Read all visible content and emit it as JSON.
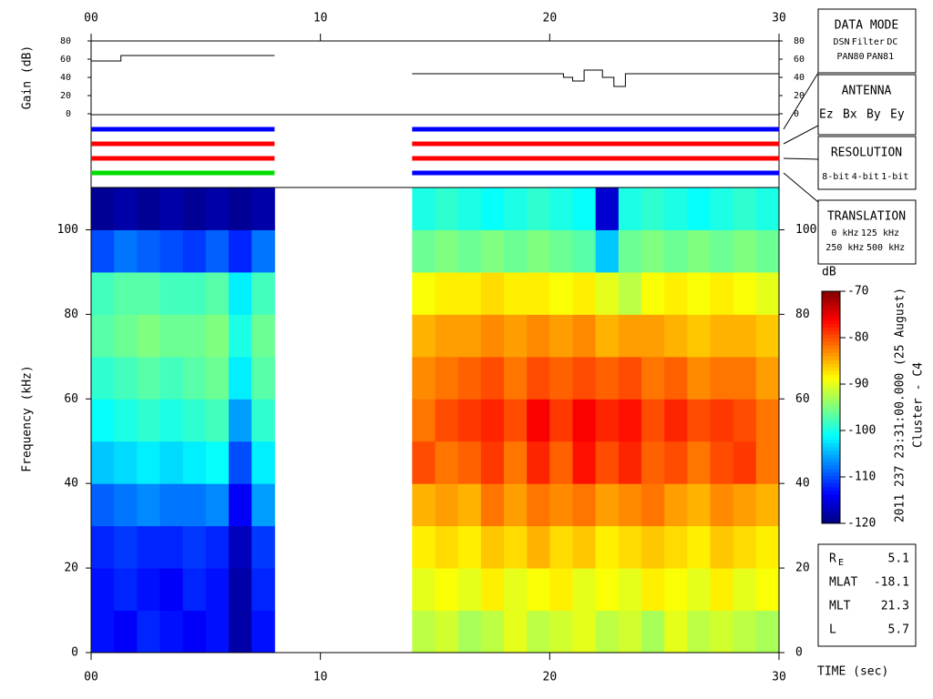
{
  "chart_data": [
    {
      "type": "line",
      "ylabel": "Gain (dB)",
      "color": "#000000",
      "x": [
        0,
        1.3,
        1.3,
        8,
        8,
        14,
        20.6,
        20.6,
        21.0,
        21.0,
        21.5,
        21.5,
        22.3,
        22.3,
        22.8,
        22.8,
        23.3,
        23.3,
        30
      ],
      "y": [
        58,
        58,
        64,
        64,
        null,
        44,
        44,
        40,
        40,
        36,
        36,
        48,
        48,
        40,
        40,
        30,
        30,
        44,
        44
      ],
      "xlim": [
        0,
        30
      ],
      "ylim": [
        0,
        80
      ],
      "yticks": [
        0,
        20,
        40,
        60,
        80
      ],
      "xticks": [
        {
          "value": 0,
          "label": "00"
        },
        10,
        20,
        30
      ]
    },
    {
      "type": "heatmap",
      "xlabel": "TIME (sec)",
      "ylabel": "Frequency (kHz)",
      "x_bins": [
        0,
        1,
        2,
        3,
        4,
        5,
        6,
        7,
        8,
        9,
        10,
        11,
        12,
        13,
        14,
        15,
        16,
        17,
        18,
        19,
        20,
        21,
        22,
        23,
        24,
        25,
        26,
        27,
        28,
        29,
        30
      ],
      "y_bins": [
        0,
        10,
        20,
        30,
        40,
        50,
        60,
        70,
        80,
        90,
        100,
        110
      ],
      "z": [
        [
          -113,
          -114,
          -112,
          -113,
          -114,
          -113,
          -118,
          -113,
          null,
          null,
          null,
          null,
          null,
          null,
          -92,
          -91,
          -93,
          -92,
          -90,
          -92,
          -91,
          -90,
          -92,
          -91,
          -93,
          -90,
          -92,
          -91,
          -92,
          -93
        ],
        [
          -113,
          -112,
          -113,
          -114,
          -112,
          -113,
          -118,
          -112,
          null,
          null,
          null,
          null,
          null,
          null,
          -90,
          -89,
          -90,
          -88,
          -90,
          -89,
          -88,
          -90,
          -89,
          -90,
          -88,
          -89,
          -90,
          -88,
          -90,
          -89
        ],
        [
          -112,
          -111,
          -112,
          -112,
          -111,
          -112,
          -117,
          -111,
          null,
          null,
          null,
          null,
          null,
          null,
          -88,
          -87,
          -88,
          -86,
          -87,
          -85,
          -87,
          -86,
          -88,
          -87,
          -86,
          -87,
          -88,
          -86,
          -87,
          -88
        ],
        [
          -109,
          -108,
          -107,
          -108,
          -108,
          -107,
          -114,
          -106,
          null,
          null,
          null,
          null,
          null,
          null,
          -85,
          -84,
          -85,
          -82,
          -84,
          -82,
          -83,
          -82,
          -84,
          -83,
          -82,
          -84,
          -85,
          -83,
          -84,
          -85
        ],
        [
          -104,
          -103,
          -102,
          -103,
          -102,
          -101,
          -110,
          -102,
          null,
          null,
          null,
          null,
          null,
          null,
          -80,
          -82,
          -81,
          -79,
          -82,
          -78,
          -81,
          -77,
          -80,
          -78,
          -81,
          -80,
          -82,
          -80,
          -79,
          -82
        ],
        [
          -101,
          -100,
          -99,
          -100,
          -99,
          -98,
          -106,
          -99,
          null,
          null,
          null,
          null,
          null,
          null,
          -82,
          -80,
          -79,
          -78,
          -80,
          -76,
          -79,
          -76,
          -78,
          -77,
          -80,
          -78,
          -80,
          -79,
          -80,
          -82
        ],
        [
          -99,
          -98,
          -97,
          -98,
          -97,
          -96,
          -102,
          -97,
          null,
          null,
          null,
          null,
          null,
          null,
          -83,
          -82,
          -81,
          -80,
          -82,
          -80,
          -81,
          -80,
          -81,
          -80,
          -82,
          -81,
          -83,
          -82,
          -82,
          -84
        ],
        [
          -97,
          -96,
          -95,
          -96,
          -96,
          -95,
          -100,
          -96,
          null,
          null,
          null,
          null,
          null,
          null,
          -85,
          -84,
          -84,
          -83,
          -84,
          -83,
          -84,
          -83,
          -85,
          -84,
          -84,
          -85,
          -86,
          -85,
          -85,
          -86
        ],
        [
          -98,
          -97,
          -97,
          -98,
          -98,
          -97,
          -102,
          -98,
          null,
          null,
          null,
          null,
          null,
          null,
          -89,
          -88,
          -88,
          -87,
          -88,
          -88,
          -89,
          -88,
          -90,
          -92,
          -89,
          -88,
          -89,
          -88,
          -89,
          -90
        ],
        [
          -110,
          -108,
          -109,
          -110,
          -111,
          -109,
          -112,
          -108,
          null,
          null,
          null,
          null,
          null,
          null,
          -96,
          -95,
          -96,
          -95,
          -96,
          -95,
          -96,
          -97,
          -104,
          -96,
          -95,
          -96,
          -95,
          -96,
          -95,
          -96
        ],
        [
          -119,
          -118,
          -119,
          -118,
          -119,
          -118,
          -119,
          -118,
          null,
          null,
          null,
          null,
          null,
          null,
          -100,
          -99,
          -100,
          -101,
          -100,
          -99,
          -100,
          -101,
          -116,
          -100,
          -99,
          -100,
          -101,
          -100,
          -99,
          -100
        ]
      ],
      "xlim": [
        0,
        30
      ],
      "ylim": [
        0,
        110
      ],
      "yticks": [
        0,
        20,
        40,
        60,
        80,
        100
      ],
      "xticks": [
        {
          "value": 0,
          "label": "00"
        },
        10,
        20,
        30
      ],
      "colorbar": {
        "label": "dB",
        "colormap": "jet",
        "lim": [
          -120,
          -70
        ],
        "ticks": [
          -70,
          -80,
          -90,
          -100,
          -110,
          -120
        ]
      },
      "side_label": [
        "2011 237 23:31:00.000 (25 August)",
        "Cluster - C4"
      ]
    }
  ],
  "mode_bars": [
    {
      "x0": 0,
      "x1": 8,
      "colors": [
        "#0000ff",
        "#ff0000",
        "#ff0000",
        "#00dd00"
      ]
    },
    {
      "x0": 14,
      "x1": 30,
      "colors": [
        "#0000ff",
        "#ff0000",
        "#ff0000",
        "#0000ff"
      ]
    }
  ],
  "legend_boxes": [
    {
      "title": "DATA MODE",
      "rows": [
        [
          {
            "text": "DSN",
            "color": "#ff0000"
          },
          {
            "text": "Filter",
            "color": "#00c000"
          },
          {
            "text": "DC",
            "color": "#0000ff"
          }
        ],
        [
          {
            "text": "PAN80",
            "color": "#000000"
          },
          {
            "text": "PAN81",
            "color": "#00c8c8"
          }
        ]
      ]
    },
    {
      "title": "ANTENNA",
      "rows": [
        [
          {
            "text": "Ez",
            "color": "#ff0000"
          },
          {
            "text": "Bx",
            "color": "#00c000"
          },
          {
            "text": "By",
            "color": "#0000ff"
          },
          {
            "text": "Ey",
            "color": "#000000"
          }
        ]
      ]
    },
    {
      "title": "RESOLUTION",
      "rows": [
        [
          {
            "text": "8-bit",
            "color": "#ff0000"
          },
          {
            "text": "4-bit",
            "color": "#00c000"
          },
          {
            "text": "1-bit",
            "color": "#0000ff"
          }
        ]
      ]
    },
    {
      "title": "TRANSLATION",
      "rows": [
        [
          {
            "text": "0 kHz",
            "color": "#ff0000"
          },
          {
            "text": "125 kHz",
            "color": "#00c000"
          }
        ],
        [
          {
            "text": "250 kHz",
            "color": "#0000ff"
          },
          {
            "text": "500 kHz",
            "color": "#000000"
          }
        ]
      ]
    }
  ],
  "info": [
    {
      "label": "R",
      "sub": "E",
      "value": 5.1
    },
    {
      "label": "MLAT",
      "value": -18.1
    },
    {
      "label": "MLT",
      "value": 21.3
    },
    {
      "label": "L",
      "value": 5.7
    }
  ]
}
